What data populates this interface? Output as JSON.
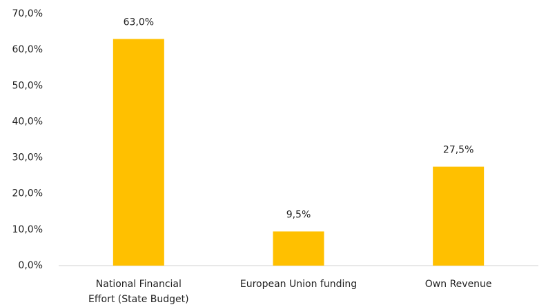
{
  "chart_data": {
    "type": "bar",
    "categories": [
      "National Financial Effort (State Budget)",
      "European Union funding",
      "Own Revenue"
    ],
    "values": [
      63.0,
      9.5,
      27.5
    ],
    "value_labels": [
      "63,0%",
      "9,5%",
      "27,5%"
    ],
    "color": "#ffc000",
    "ylim": [
      0,
      70
    ],
    "yticks": [
      {
        "value": 0,
        "label": "0,0%"
      },
      {
        "value": 10,
        "label": "10,0%"
      },
      {
        "value": 20,
        "label": "20,0%"
      },
      {
        "value": 30,
        "label": "30,0%"
      },
      {
        "value": 40,
        "label": "40,0%"
      },
      {
        "value": 50,
        "label": "50,0%"
      },
      {
        "value": 60,
        "label": "60,0%"
      },
      {
        "value": 70,
        "label": "70,0%"
      }
    ],
    "grid": false
  }
}
